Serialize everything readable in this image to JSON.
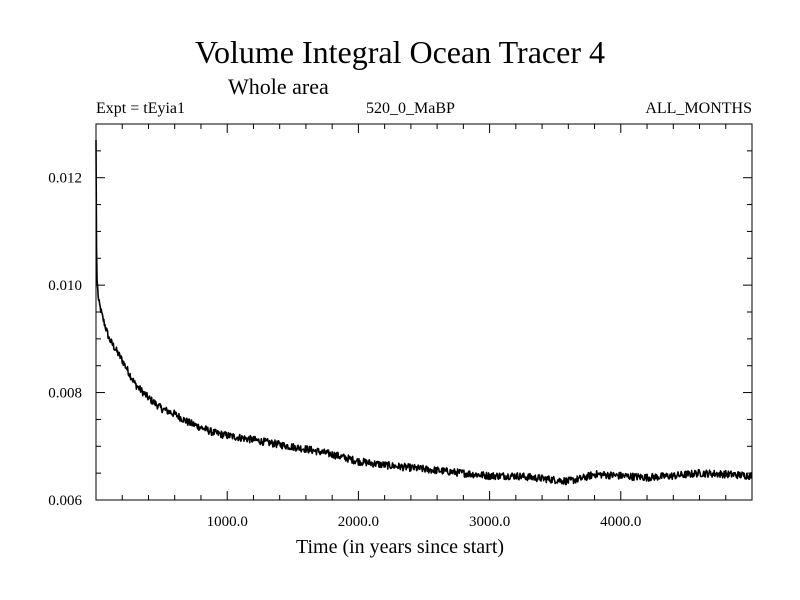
{
  "chart_data": {
    "type": "line",
    "title": "Volume Integral Ocean Tracer 4",
    "subtitle": "Whole area",
    "header_left": "Expt = tEyia1",
    "header_center": "520_0_MaBP",
    "header_right": "ALL_MONTHS",
    "xlabel": "Time (in years since start)",
    "ylabel": "",
    "xlim": [
      0,
      5000
    ],
    "ylim": [
      0.006,
      0.013
    ],
    "xticks": [
      1000,
      2000,
      3000,
      4000
    ],
    "xtick_labels": [
      "1000.0",
      "2000.0",
      "3000.0",
      "4000.0"
    ],
    "yticks": [
      0.006,
      0.008,
      0.01,
      0.012
    ],
    "ytick_labels": [
      "0.006",
      "0.008",
      "0.010",
      "0.012"
    ],
    "series": [
      {
        "name": "Volume Integral Ocean Tracer 4",
        "color": "#000000",
        "x": [
          0,
          5,
          20,
          50,
          100,
          200,
          300,
          400,
          500,
          600,
          700,
          800,
          900,
          1000,
          1200,
          1400,
          1600,
          1800,
          2000,
          2200,
          2400,
          2600,
          2800,
          3000,
          3200,
          3400,
          3600,
          3700,
          3800,
          4000,
          4200,
          4400,
          4600,
          4800,
          5000
        ],
        "values": [
          0.0127,
          0.0102,
          0.0097,
          0.0094,
          0.009,
          0.0086,
          0.00815,
          0.0079,
          0.0077,
          0.0076,
          0.00745,
          0.00735,
          0.00725,
          0.0072,
          0.00712,
          0.00703,
          0.00695,
          0.00685,
          0.00672,
          0.00665,
          0.0066,
          0.00655,
          0.0065,
          0.00645,
          0.00645,
          0.0064,
          0.00635,
          0.0064,
          0.00648,
          0.00645,
          0.00642,
          0.00645,
          0.0065,
          0.00648,
          0.00645
        ]
      }
    ]
  }
}
